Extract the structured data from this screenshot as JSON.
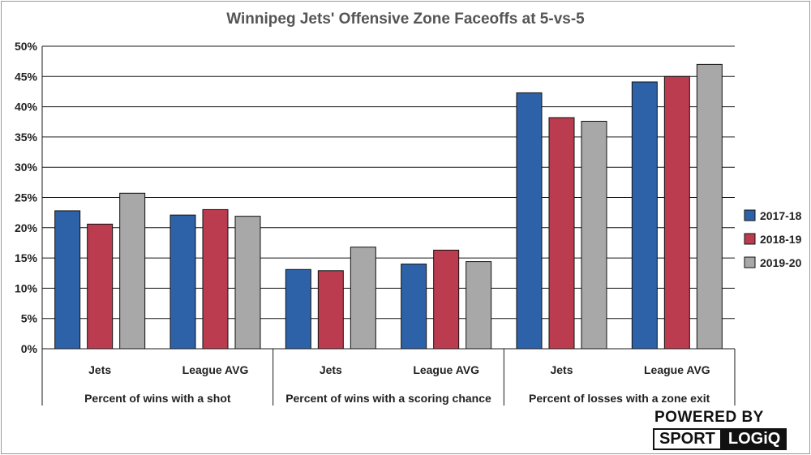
{
  "colors": {
    "2017-18": "#2e62a8",
    "2018-19": "#bb3b4f",
    "2019-20": "#a8a8a8",
    "grid": "#1a1a1a"
  },
  "chart_data": {
    "type": "bar",
    "title": "Winnipeg Jets' Offensive Zone Faceoffs at 5-vs-5",
    "xlabel": "",
    "ylabel": "",
    "ylim": [
      0,
      50
    ],
    "yticks": [
      "0%",
      "5%",
      "10%",
      "15%",
      "20%",
      "25%",
      "30%",
      "35%",
      "40%",
      "45%",
      "50%"
    ],
    "grid": true,
    "legend_position": "right",
    "groups": [
      {
        "label": "Percent of wins with a shot",
        "categories": [
          "Jets",
          "League AVG"
        ]
      },
      {
        "label": "Percent of wins with a scoring chance",
        "categories": [
          "Jets",
          "League AVG"
        ]
      },
      {
        "label": "Percent of losses with a zone exit",
        "categories": [
          "Jets",
          "League AVG"
        ]
      }
    ],
    "series": [
      {
        "name": "2017-18",
        "values": [
          22.8,
          22.1,
          13.1,
          14.0,
          42.3,
          44.1
        ]
      },
      {
        "name": "2018-19",
        "values": [
          20.6,
          23.0,
          12.9,
          16.3,
          38.2,
          45.0
        ]
      },
      {
        "name": "2019-20",
        "values": [
          25.7,
          21.9,
          16.8,
          14.4,
          37.6,
          47.0
        ]
      }
    ]
  },
  "branding": {
    "line1": "POWERED BY",
    "word1": "SPORT",
    "word2": "LOGiQ"
  }
}
